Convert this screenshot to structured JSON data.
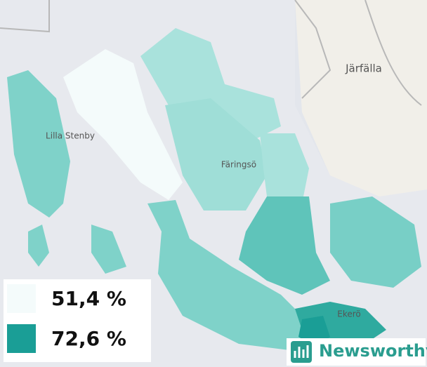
{
  "places": [
    "Lilla Stenby",
    "Färingsö",
    "Järfälla",
    "Ekerö"
  ],
  "legend": [
    {
      "value": 51.4,
      "label": "51,4 %",
      "color": "#f4fbfb"
    },
    {
      "value": 72.6,
      "label": "72,6 %",
      "color": "#1a9e96"
    }
  ],
  "brand": "Newsworthy"
}
